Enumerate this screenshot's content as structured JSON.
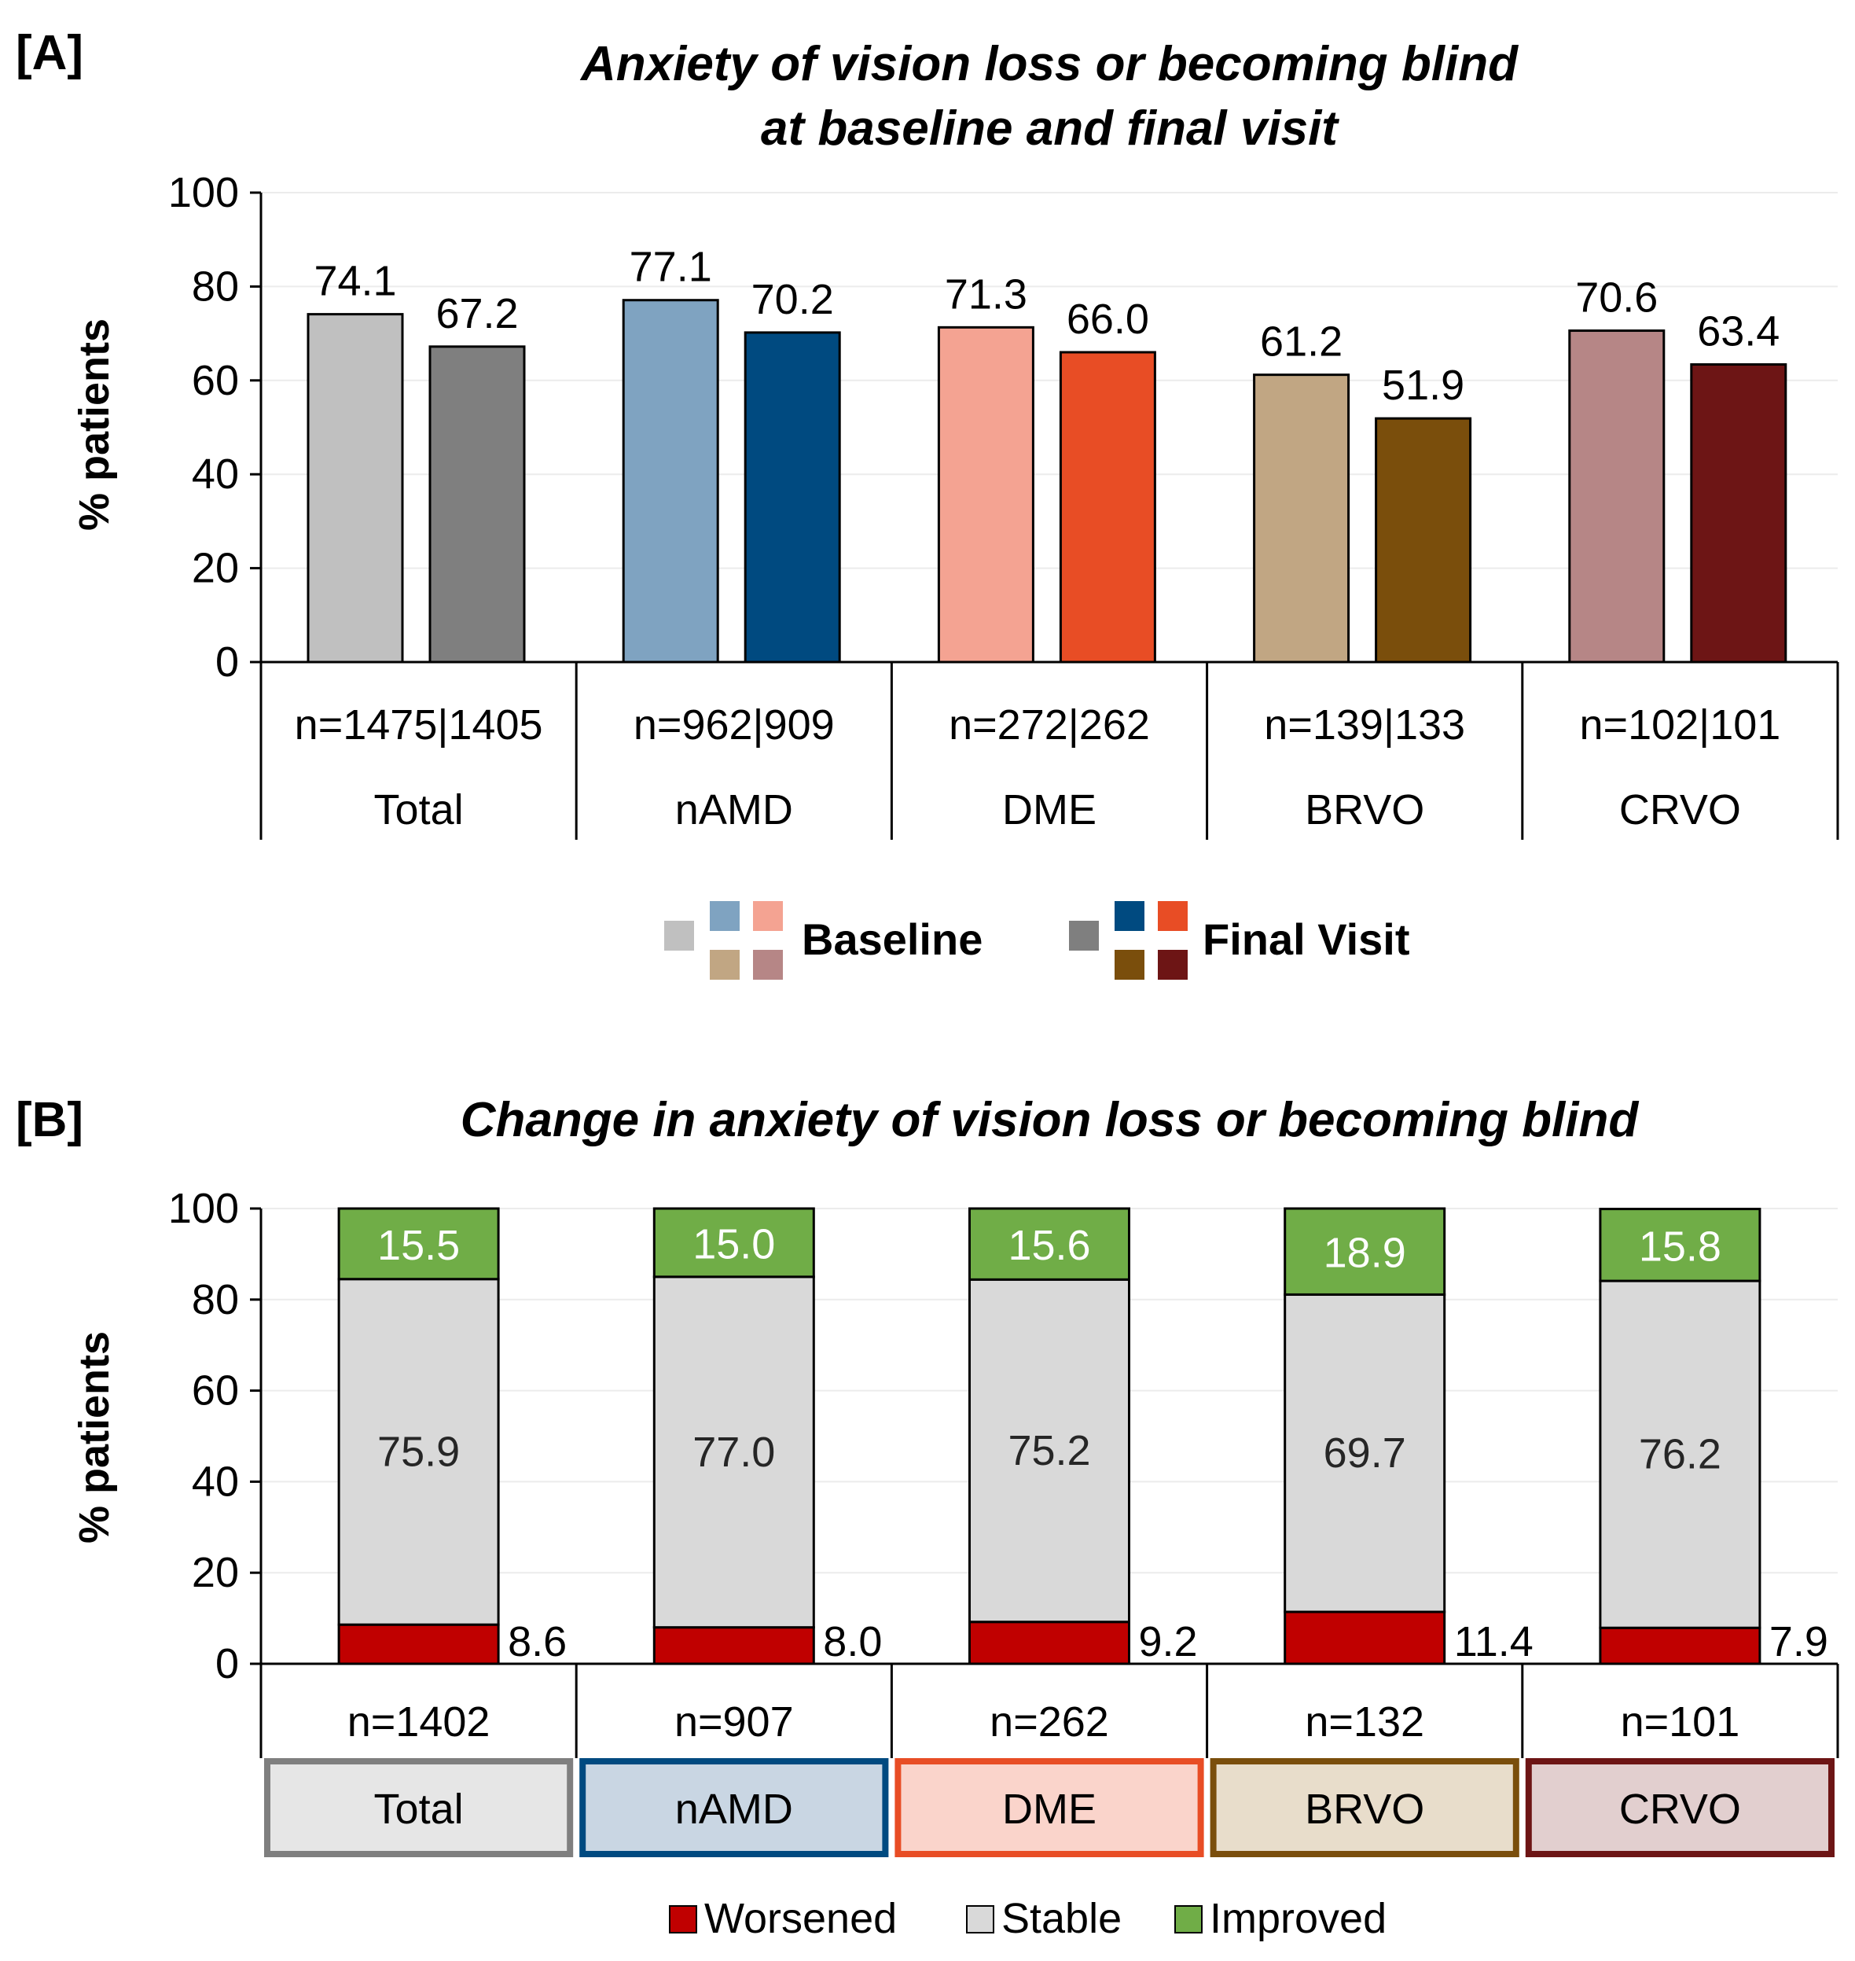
{
  "chart_data": [
    {
      "panel_label": "[A]",
      "type": "bar",
      "title": [
        "Anxiety of vision loss or becoming blind",
        "at baseline and final visit"
      ],
      "ylabel": "% patients",
      "ylim": [
        0,
        100
      ],
      "yticks": [
        0,
        20,
        40,
        60,
        80,
        100
      ],
      "categories": [
        "Total",
        "nAMD",
        "DME",
        "BRVO",
        "CRVO"
      ],
      "n_labels": [
        "n=1475|1405",
        "n=962|909",
        "n=272|262",
        "n=139|133",
        "n=102|101"
      ],
      "series": [
        {
          "name": "Baseline",
          "values": [
            74.1,
            77.1,
            71.3,
            61.2,
            70.6
          ],
          "value_labels": [
            "74.1",
            "77.1",
            "71.3",
            "61.2",
            "70.6"
          ],
          "colors": [
            "#c0c0c0",
            "#7fa3c1",
            "#f4a392",
            "#c1a683",
            "#b68686"
          ]
        },
        {
          "name": "Final Visit",
          "values": [
            67.2,
            70.2,
            66.0,
            51.9,
            63.4
          ],
          "value_labels": [
            "67.2",
            "70.2",
            "66.0",
            "51.9",
            "63.4"
          ],
          "colors": [
            "#7f7f7f",
            "#004a80",
            "#e84d25",
            "#7a4e0c",
            "#6d1515"
          ]
        }
      ],
      "legend": {
        "position": "bottom",
        "items": [
          "Baseline",
          "Final Visit"
        ]
      }
    },
    {
      "panel_label": "[B]",
      "type": "bar",
      "stacked": true,
      "title": [
        "Change in anxiety of vision loss or becoming blind"
      ],
      "ylabel": "% patients",
      "ylim": [
        0,
        100
      ],
      "yticks": [
        0,
        20,
        40,
        60,
        80,
        100
      ],
      "categories": [
        "Total",
        "nAMD",
        "DME",
        "BRVO",
        "CRVO"
      ],
      "n_labels": [
        "n=1402",
        "n=907",
        "n=262",
        "n=132",
        "n=101"
      ],
      "category_colors": {
        "fill": [
          "#e6e6e6",
          "#c9d6e3",
          "#fad4cb",
          "#e8ddcb",
          "#e2cfcf"
        ],
        "border": [
          "#7f7f7f",
          "#004a80",
          "#e84d25",
          "#7a4e0c",
          "#6d1515"
        ]
      },
      "series": [
        {
          "name": "Worsened",
          "color": "#c00000",
          "values": [
            8.6,
            8.0,
            9.2,
            11.4,
            7.9
          ],
          "value_labels": [
            "8.6",
            "8.0",
            "9.2",
            "11.4",
            "7.9"
          ]
        },
        {
          "name": "Stable",
          "color": "#d9d9d9",
          "values": [
            75.9,
            77.0,
            75.2,
            69.7,
            76.2
          ],
          "value_labels": [
            "75.9",
            "77.0",
            "75.2",
            "69.7",
            "76.2"
          ]
        },
        {
          "name": "Improved",
          "color": "#70ad47",
          "values": [
            15.5,
            15.0,
            15.6,
            18.9,
            15.8
          ],
          "value_labels": [
            "15.5",
            "15.0",
            "15.6",
            "18.9",
            "15.8"
          ]
        }
      ],
      "legend": {
        "position": "bottom",
        "items": [
          "Worsened",
          "Stable",
          "Improved"
        ]
      }
    }
  ]
}
